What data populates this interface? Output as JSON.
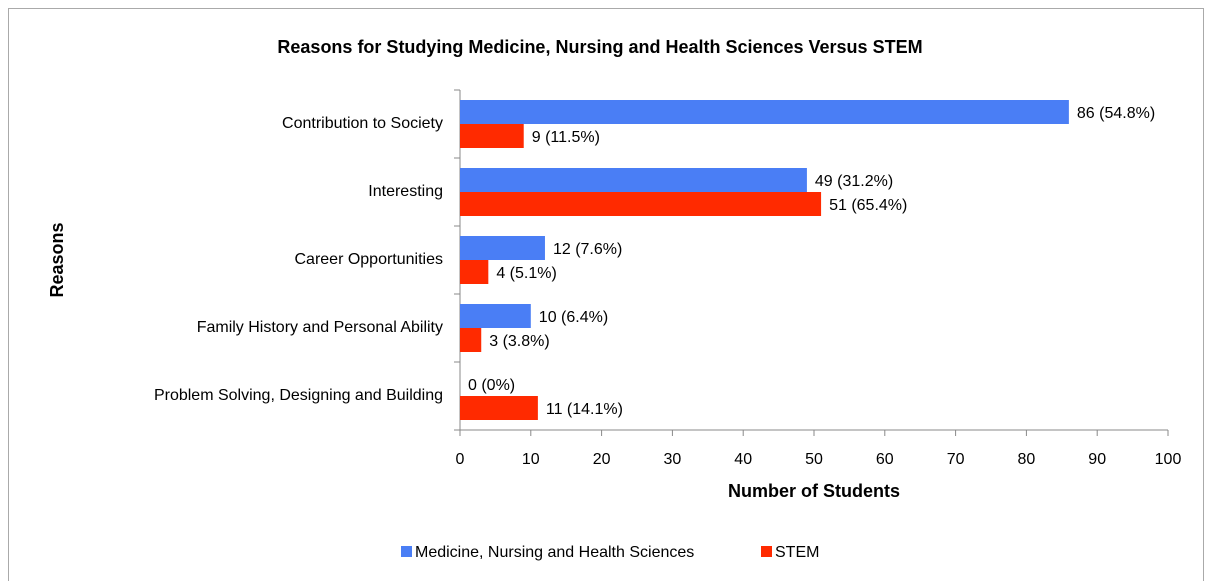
{
  "chart_data": {
    "type": "bar",
    "orientation": "horizontal",
    "title": "Reasons for Studying Medicine, Nursing and Health Sciences Versus STEM",
    "x_label": "Number of Students",
    "y_label": "Reasons",
    "categories": [
      "Contribution to Society",
      "Interesting",
      "Career Opportunities",
      "Family History and Personal Ability",
      "Problem Solving, Designing and Building"
    ],
    "series": [
      {
        "name": "Medicine, Nursing and Health Sciences",
        "color": "#4a7ef5",
        "values": [
          86,
          49,
          12,
          10,
          0
        ],
        "value_labels": [
          "86 (54.8%)",
          "49 (31.2%)",
          "12 (7.6%)",
          "10 (6.4%)",
          "0 (0%)"
        ]
      },
      {
        "name": "STEM",
        "color": "#ff2a00",
        "values": [
          9,
          51,
          4,
          3,
          11
        ],
        "value_labels": [
          "9 (11.5%)",
          "51 (65.4%)",
          "4 (5.1%)",
          "3 (3.8%)",
          "11 (14.1%)"
        ]
      }
    ],
    "xlim": [
      0,
      100
    ],
    "xticks": [
      0,
      10,
      20,
      30,
      40,
      50,
      60,
      70,
      80,
      90,
      100
    ],
    "legend": "bottom"
  }
}
